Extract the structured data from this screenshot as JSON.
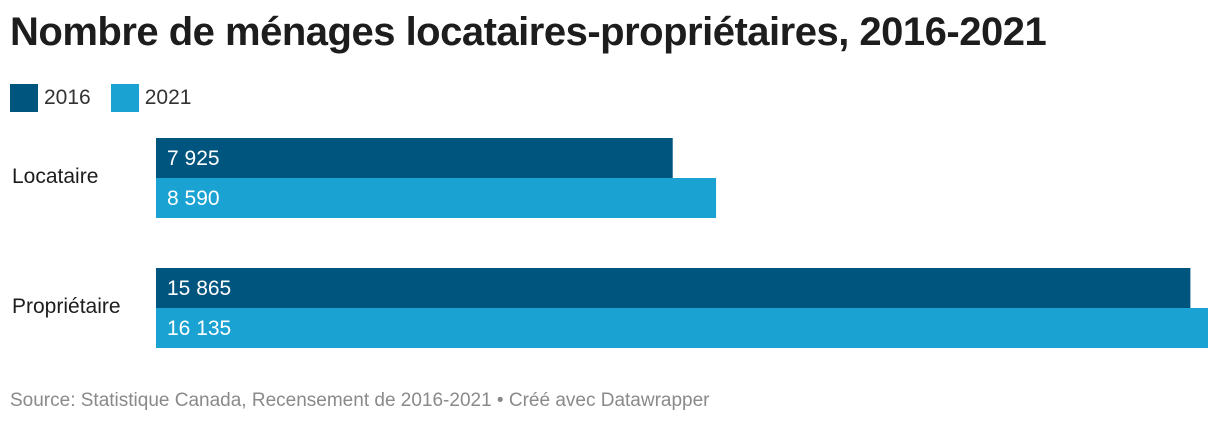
{
  "title": "Nombre de ménages locataires-propriétaires, 2016-2021",
  "legend": [
    {
      "label": "2016",
      "color": "#00557f"
    },
    {
      "label": "2021",
      "color": "#1aa3d2"
    }
  ],
  "source": "Source: Statistique Canada, Recensement de 2016-2021 • Créé avec Datawrapper",
  "chart_data": {
    "type": "bar",
    "orientation": "horizontal",
    "categories": [
      "Locataire",
      "Propriétaire"
    ],
    "series": [
      {
        "name": "2016",
        "values": [
          7925,
          15865
        ],
        "labels": [
          "7 925",
          "15 865"
        ],
        "color": "#00557f"
      },
      {
        "name": "2021",
        "values": [
          8590,
          16135
        ],
        "labels": [
          "8 590",
          "16 135"
        ],
        "color": "#1aa3d2"
      }
    ],
    "xlim": [
      0,
      16135
    ],
    "grid": false,
    "legend_position": "top-left"
  }
}
